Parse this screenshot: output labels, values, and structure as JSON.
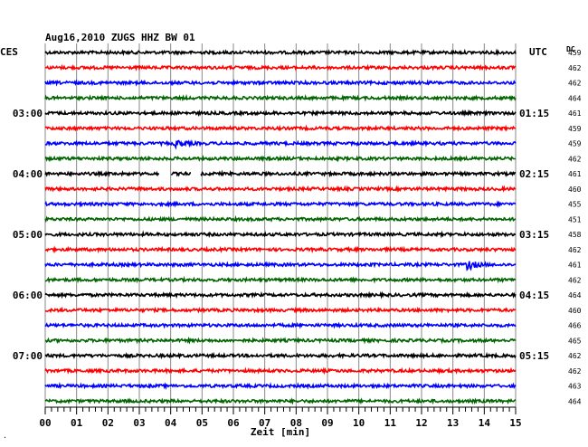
{
  "chart_data": {
    "type": "line",
    "title": "Aug16,2010   ZUGS HHZ BW 01",
    "left_axis_label": "CES",
    "right_axis_label": "UTC",
    "right_column_label": "DC",
    "xlabel": "Zeit [min]",
    "xlim": [
      0,
      15
    ],
    "x_ticks": [
      "00",
      "01",
      "02",
      "03",
      "04",
      "05",
      "06",
      "07",
      "08",
      "09",
      "10",
      "11",
      "12",
      "13",
      "14",
      "15"
    ],
    "grid": true,
    "trace_colors": [
      "#000000",
      "#ff0000",
      "#0000ff",
      "#006400"
    ],
    "left_time_labels": [
      {
        "trace": 4,
        "label": "03:00"
      },
      {
        "trace": 8,
        "label": "04:00"
      },
      {
        "trace": 12,
        "label": "05:00"
      },
      {
        "trace": 16,
        "label": "06:00"
      },
      {
        "trace": 20,
        "label": "07:00"
      }
    ],
    "right_time_labels": [
      {
        "trace": 4,
        "label": "01:15"
      },
      {
        "trace": 8,
        "label": "02:15"
      },
      {
        "trace": 12,
        "label": "03:15"
      },
      {
        "trace": 16,
        "label": "04:15"
      },
      {
        "trace": 20,
        "label": "05:15"
      }
    ],
    "dc_offsets": [
      "459",
      "462",
      "462",
      "464",
      "461",
      "459",
      "459",
      "462",
      "461",
      "460",
      "455",
      "451",
      "458",
      "462",
      "461",
      "462",
      "464",
      "460",
      "466",
      "465",
      "462",
      "462",
      "463",
      "464"
    ],
    "events": [
      {
        "trace": 6,
        "x_min": 4.2,
        "description": "small local event"
      },
      {
        "trace": 14,
        "x_min": 13.5,
        "description": "earthquake signal"
      }
    ],
    "data_gaps": [
      {
        "trace": 8,
        "from_min": 3.65,
        "to_min": 4.0
      },
      {
        "trace": 8,
        "from_min": 4.65,
        "to_min": 4.95
      }
    ]
  },
  "corner_mark": "."
}
